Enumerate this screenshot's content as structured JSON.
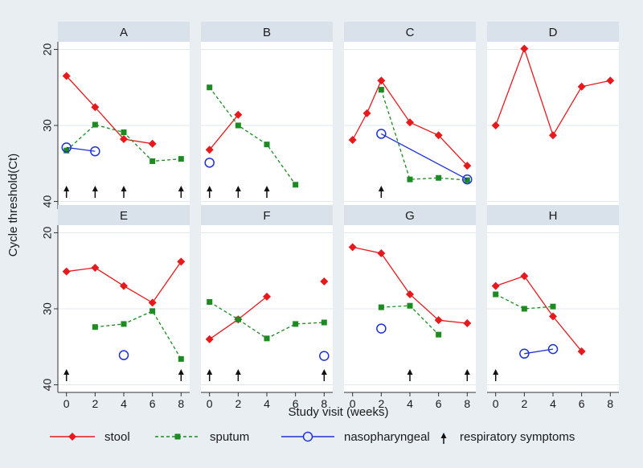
{
  "chart_data": {
    "type": "line",
    "layout": "small-multiples 2x4",
    "xlabel": "Study visit (weeks)",
    "ylabel": "Cycle threshold(Ct)",
    "x_ticks": [
      0,
      2,
      4,
      6,
      8
    ],
    "y_ticks": [
      20,
      30,
      40
    ],
    "y_reversed": true,
    "ylim": [
      19,
      41
    ],
    "xlim": [
      -0.6,
      8.6
    ],
    "grid": "horizontal",
    "legend_position": "bottom",
    "legend": [
      {
        "key": "stool",
        "label": "stool",
        "color": "#e8191c",
        "marker": "diamond",
        "line": "solid"
      },
      {
        "key": "sputum",
        "label": "sputum",
        "color": "#1d8a22",
        "marker": "square",
        "line": "dashed"
      },
      {
        "key": "naso",
        "label": "nasopharyngeal",
        "color": "#1f32d6",
        "marker": "circle-open",
        "line": "solid"
      },
      {
        "key": "resp",
        "label": "respiratory symptoms",
        "color": "#111111",
        "marker": "arrow-up",
        "line": "none"
      }
    ],
    "panels": [
      {
        "title": "A",
        "series": [
          {
            "key": "stool",
            "points": [
              [
                0,
                23.5
              ],
              [
                2,
                27.6
              ],
              [
                4,
                31.8
              ],
              [
                6,
                32.4
              ]
            ]
          },
          {
            "key": "sputum",
            "points": [
              [
                0,
                33.3
              ],
              [
                2,
                29.9
              ],
              [
                4,
                30.9
              ],
              [
                6,
                34.7
              ],
              [
                8,
                34.4
              ]
            ]
          },
          {
            "key": "naso",
            "points": [
              [
                0,
                32.9
              ],
              [
                2,
                33.4
              ]
            ]
          }
        ],
        "respiratory_weeks": [
          0,
          2,
          4,
          8
        ]
      },
      {
        "title": "B",
        "series": [
          {
            "key": "stool",
            "points": [
              [
                0,
                33.2
              ],
              [
                2,
                28.6
              ]
            ]
          },
          {
            "key": "sputum",
            "points": [
              [
                0,
                25.0
              ],
              [
                2,
                30.0
              ],
              [
                4,
                32.5
              ],
              [
                6,
                37.8
              ]
            ]
          },
          {
            "key": "naso",
            "points": [
              [
                0,
                34.9
              ]
            ]
          }
        ],
        "respiratory_weeks": [
          0,
          2,
          4
        ]
      },
      {
        "title": "C",
        "series": [
          {
            "key": "stool",
            "points": [
              [
                0,
                31.9
              ],
              [
                1,
                28.4
              ],
              [
                2,
                24.1
              ],
              [
                4,
                29.6
              ],
              [
                6,
                31.3
              ],
              [
                8,
                35.3
              ]
            ]
          },
          {
            "key": "sputum",
            "points": [
              [
                2,
                25.3
              ],
              [
                4,
                37.1
              ],
              [
                6,
                36.9
              ],
              [
                8,
                37.2
              ]
            ]
          },
          {
            "key": "naso",
            "points": [
              [
                2,
                31.1
              ],
              [
                8,
                37.1
              ]
            ]
          }
        ],
        "respiratory_weeks": [
          2
        ]
      },
      {
        "title": "D",
        "series": [
          {
            "key": "stool",
            "points": [
              [
                0,
                30.0
              ],
              [
                2,
                19.9
              ],
              [
                4,
                31.3
              ],
              [
                6,
                24.9
              ],
              [
                8,
                24.1
              ]
            ]
          }
        ],
        "respiratory_weeks": []
      },
      {
        "title": "E",
        "series": [
          {
            "key": "stool",
            "points": [
              [
                0,
                25.1
              ],
              [
                2,
                24.6
              ],
              [
                4,
                27.0
              ],
              [
                6,
                29.2
              ],
              [
                8,
                23.8
              ]
            ]
          },
          {
            "key": "sputum",
            "points": [
              [
                2,
                32.4
              ],
              [
                4,
                32.0
              ],
              [
                6,
                30.3
              ],
              [
                8,
                36.6
              ]
            ]
          },
          {
            "key": "naso",
            "points": [
              [
                4,
                36.1
              ]
            ]
          }
        ],
        "respiratory_weeks": [
          0,
          8
        ]
      },
      {
        "title": "F",
        "series": [
          {
            "key": "stool",
            "points": [
              [
                0,
                34.0
              ],
              [
                2,
                31.4
              ],
              [
                4,
                28.4
              ]
            ]
          },
          {
            "key": "stool",
            "points": [
              [
                8,
                26.4
              ]
            ]
          },
          {
            "key": "sputum",
            "points": [
              [
                0,
                29.1
              ],
              [
                2,
                31.4
              ],
              [
                4,
                33.9
              ],
              [
                6,
                32.0
              ],
              [
                8,
                31.8
              ]
            ]
          },
          {
            "key": "naso",
            "points": [
              [
                8,
                36.2
              ]
            ]
          }
        ],
        "respiratory_weeks": [
          0,
          2,
          8
        ]
      },
      {
        "title": "G",
        "series": [
          {
            "key": "stool",
            "points": [
              [
                0,
                21.9
              ],
              [
                2,
                22.7
              ],
              [
                4,
                28.1
              ],
              [
                6,
                31.5
              ],
              [
                8,
                31.9
              ]
            ]
          },
          {
            "key": "sputum",
            "points": [
              [
                2,
                29.8
              ],
              [
                4,
                29.6
              ],
              [
                6,
                33.4
              ]
            ]
          },
          {
            "key": "naso",
            "points": [
              [
                2,
                32.6
              ]
            ]
          }
        ],
        "respiratory_weeks": [
          4,
          8
        ]
      },
      {
        "title": "H",
        "series": [
          {
            "key": "stool",
            "points": [
              [
                0,
                27.0
              ],
              [
                2,
                25.7
              ],
              [
                4,
                31.0
              ],
              [
                6,
                35.6
              ]
            ]
          },
          {
            "key": "sputum",
            "points": [
              [
                0,
                28.1
              ],
              [
                2,
                30.0
              ],
              [
                4,
                29.7
              ]
            ]
          },
          {
            "key": "naso",
            "points": [
              [
                2,
                35.9
              ],
              [
                4,
                35.3
              ]
            ]
          }
        ],
        "respiratory_weeks": [
          0
        ]
      }
    ]
  }
}
